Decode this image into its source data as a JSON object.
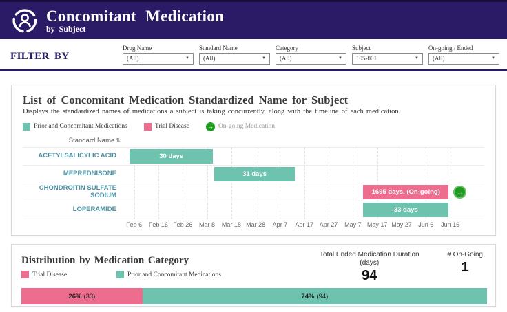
{
  "header": {
    "title": "Concomitant Medication",
    "subtitle": "by Subject"
  },
  "filter_bar": {
    "label": "FILTER BY",
    "filters": [
      {
        "label": "Drug Name",
        "value": "(All)"
      },
      {
        "label": "Standard Name",
        "value": "(All)"
      },
      {
        "label": "Category",
        "value": "(All)"
      },
      {
        "label": "Subject",
        "value": "105-001"
      },
      {
        "label": "On-going / Ended",
        "value": "(All)"
      }
    ]
  },
  "icons": {
    "caret": "▼",
    "sort": "⇅",
    "arrow": "→"
  },
  "colors": {
    "header_purple": "#2b1b67",
    "teal": "#6ec3ae",
    "pink": "#ec6d8e",
    "green": "#1e9c1e",
    "row_label": "#4a93a4"
  },
  "gantt_panel": {
    "title": "List of Concomitant Medication Standardized Name for Subject",
    "subtitle": "Displays the standardized names of medications a subject is taking concurrently, along with the timeline of each medication.",
    "column_header": "Standard Name",
    "legend": [
      {
        "label": "Prior and Concomitant Medications",
        "type": "swatch",
        "color": "#6ec3ae"
      },
      {
        "label": "Trial Disease",
        "type": "swatch",
        "color": "#ec6d8e"
      },
      {
        "label": "On-going Medication",
        "type": "arrow",
        "color": "#1e9c1e"
      }
    ]
  },
  "kpis": [
    {
      "label": "Total Ended Medication Duration (days)",
      "value": "94"
    },
    {
      "label": "# On-Going",
      "value": "1"
    }
  ],
  "distribution_panel": {
    "title": "Distribution by Medication Category",
    "legend": [
      {
        "label": "Trial Disease",
        "color": "#ec6d8e"
      },
      {
        "label": "Prior and Concomitant Medications",
        "color": "#6ec3ae"
      }
    ]
  },
  "chart_data": [
    {
      "type": "gantt",
      "title": "List of Concomitant Medication Standardized Name for Subject",
      "y_axis": "Standard Name",
      "legend_position": "top",
      "grid": "vertical-dashed",
      "ongoing_color": "#1e9c1e",
      "rows": [
        {
          "name": "ACETYLSALICYLIC ACID",
          "bar_label": "30 days",
          "duration_days": 30,
          "category": "Prior and Concomitant Medications",
          "color": "#6ec3ae",
          "start_pct": 1.8,
          "width_pct": 23.2,
          "ongoing": false
        },
        {
          "name": "MEPREDNISONE",
          "bar_label": "31 days",
          "duration_days": 31,
          "category": "Prior and Concomitant Medications",
          "color": "#6ec3ae",
          "start_pct": 25.4,
          "width_pct": 22.5,
          "ongoing": false
        },
        {
          "name": "CHONDROITIN SULFATE SODIUM",
          "bar_label": "1695 days. (On-going)",
          "duration_days": 1695,
          "category": "Trial Disease",
          "color": "#ec6d8e",
          "start_pct": 67.0,
          "width_pct": 23.8,
          "ongoing": true
        },
        {
          "name": "LOPERAMIDE",
          "bar_label": "33 days",
          "duration_days": 33,
          "category": "Prior and Concomitant Medications",
          "color": "#6ec3ae",
          "start_pct": 67.0,
          "width_pct": 23.8,
          "ongoing": false
        }
      ],
      "x_ticks": [
        "Feb 6",
        "Feb 16",
        "Feb 26",
        "Mar 8",
        "Mar 18",
        "Mar 28",
        "Apr 7",
        "Apr 17",
        "Apr 27",
        "May 7",
        "May 17",
        "May 27",
        "Jun 6",
        "Jun 16"
      ],
      "tick_start_pct": 3.0,
      "tick_step_pct": 6.79
    },
    {
      "type": "bar",
      "mode": "stacked-horizontal",
      "title": "Distribution by Medication Category",
      "segments": [
        {
          "label": "Trial Disease",
          "pct": 26,
          "count": 33,
          "pct_label": "26%",
          "count_label": "(33)",
          "color": "#ec6d8e"
        },
        {
          "label": "Prior and Concomitant Medications",
          "pct": 74,
          "count": 94,
          "pct_label": "74%",
          "count_label": "(94)",
          "color": "#6ec3ae"
        }
      ]
    }
  ]
}
